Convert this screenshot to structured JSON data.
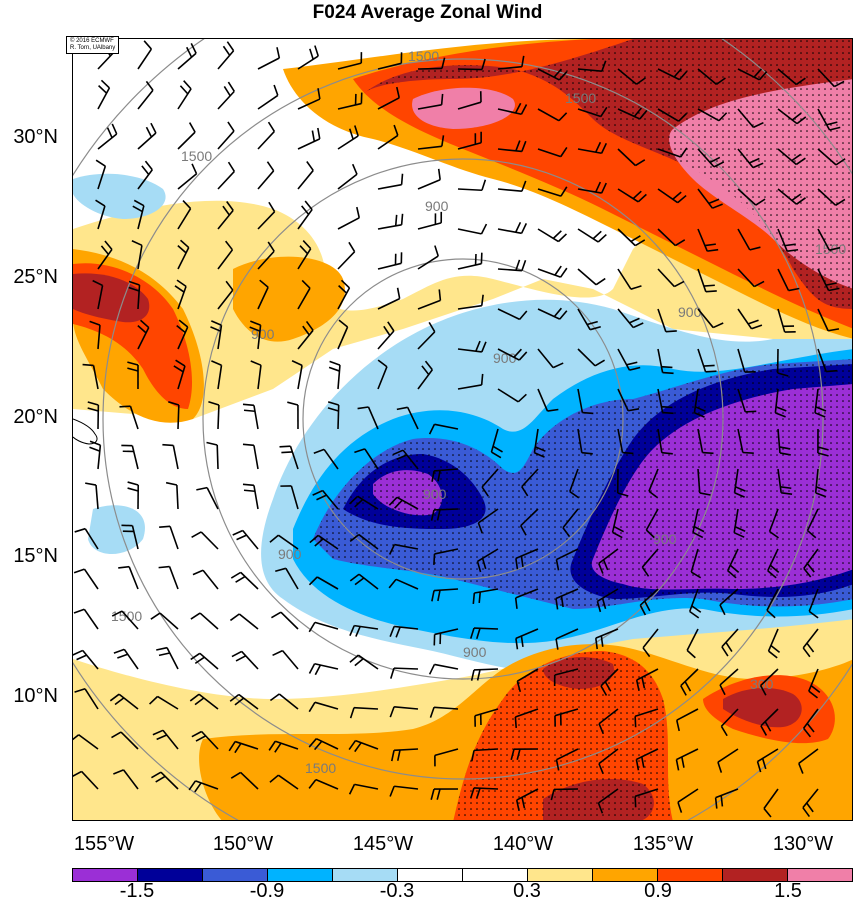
{
  "title": "F024 Average Zonal Wind",
  "credit": {
    "line1": "© 2016 ECMWF",
    "line2": "R. Torn, UAlbany"
  },
  "lat_labels": [
    "30°N",
    "25°N",
    "20°N",
    "15°N",
    "10°N"
  ],
  "lon_labels": [
    "155°W",
    "150°W",
    "145°W",
    "140°W",
    "135°W",
    "130°W"
  ],
  "contour_labels": [
    "1500",
    "1500",
    "1500",
    "1500",
    "1500",
    "1500",
    "900",
    "900",
    "900",
    "900",
    "900",
    "900",
    "900",
    "900",
    "300"
  ],
  "colorbar": {
    "colors": [
      "#9b2fd6",
      "#000099",
      "#3a5bd6",
      "#00b3ff",
      "#a6dcf5",
      "#ffffff",
      "#ffffff",
      "#ffe68c",
      "#ffa500",
      "#ff4500",
      "#b22222",
      "#f07fa8"
    ],
    "labels": [
      "-1.5",
      "-0.9",
      "-0.3",
      "0.3",
      "0.9",
      "1.5"
    ]
  },
  "chart_data": {
    "type": "map",
    "title": "F024 Average Zonal Wind",
    "lon_range": [
      "156.2°W",
      "128.4°W"
    ],
    "lat_range": [
      "5.6°N",
      "33.6°N"
    ],
    "colorbar_levels": [
      -1.5,
      -0.9,
      -0.3,
      0.3,
      0.9,
      1.5
    ],
    "range_ring_labels": [
      300,
      900,
      1500
    ],
    "features": [
      "shaded zonal wind anomaly",
      "wind barbs",
      "stippling",
      "range rings"
    ]
  }
}
